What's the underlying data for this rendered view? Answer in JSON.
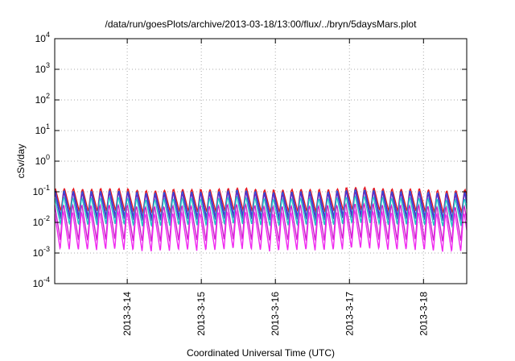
{
  "chart_data": {
    "type": "line",
    "title": "/data/run/goesPlots/archive/2013-03-18/13:00/flux/../bryn/5daysMars.plot",
    "xlabel": "Coordinated Universal Time (UTC)",
    "ylabel": "cSv/day",
    "yscale": "log",
    "ylim": [
      0.0001,
      10000
    ],
    "xlim": [
      "2013-03-13T00:30",
      "2013-03-18T14:00"
    ],
    "y_ticks": [
      {
        "base": "10",
        "exp": "-4"
      },
      {
        "base": "10",
        "exp": "-3"
      },
      {
        "base": "10",
        "exp": "-2"
      },
      {
        "base": "10",
        "exp": "-1"
      },
      {
        "base": "10",
        "exp": "0"
      },
      {
        "base": "10",
        "exp": "1"
      },
      {
        "base": "10",
        "exp": "2"
      },
      {
        "base": "10",
        "exp": "3"
      },
      {
        "base": "10",
        "exp": "4"
      }
    ],
    "x_ticks": [
      "2013-3-14",
      "2013-3-15",
      "2013-3-16",
      "2013-3-17",
      "2013-3-18"
    ],
    "grid": true,
    "cycle_hours": 2.95,
    "series": [
      {
        "color": "#e8141c",
        "peak": 0.12,
        "trough": 0.022,
        "phase": 0.0
      },
      {
        "color": "#2850e0",
        "peak": 0.1,
        "trough": 0.015,
        "phase": 0.02
      },
      {
        "color": "#5a2ec8",
        "peak": 0.085,
        "trough": 0.012,
        "phase": 0.04
      },
      {
        "color": "#1ec8c8",
        "peak": 0.06,
        "trough": 0.008,
        "phase": 0.06
      },
      {
        "color": "#c81ec8",
        "peak": 0.035,
        "trough": 0.0025,
        "phase": 0.08
      },
      {
        "color": "#f028f0",
        "peak": 0.02,
        "trough": 0.0012,
        "phase": 0.1
      }
    ]
  }
}
